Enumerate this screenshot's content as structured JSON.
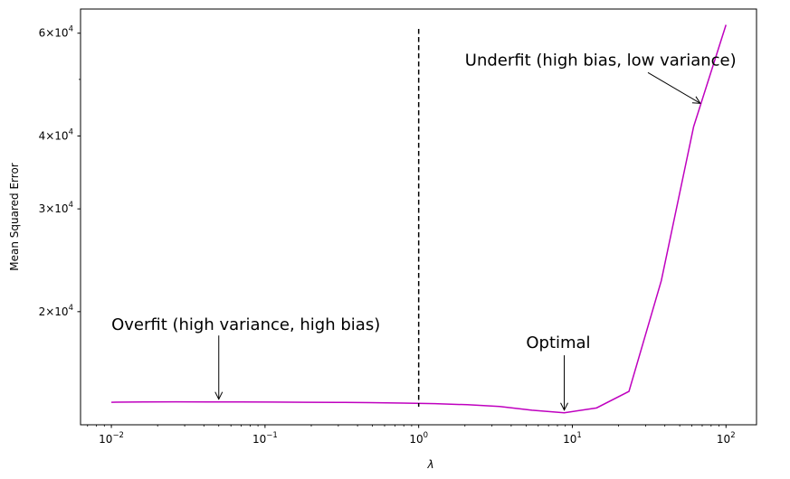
{
  "chart_data": {
    "type": "line",
    "xlabel": "λ",
    "ylabel": "Mean Squared Error",
    "xscale": "log",
    "yscale": "log",
    "xlim": [
      0.0063,
      158
    ],
    "ylim": [
      12800,
      66000
    ],
    "grid": false,
    "x_ticks": [
      {
        "value": 0.01,
        "base": "10",
        "exp": "−2"
      },
      {
        "value": 0.1,
        "base": "10",
        "exp": "−1"
      },
      {
        "value": 1,
        "base": "10",
        "exp": "0"
      },
      {
        "value": 10,
        "base": "10",
        "exp": "1"
      },
      {
        "value": 100,
        "base": "10",
        "exp": "2"
      }
    ],
    "y_ticks": [
      {
        "value": 20000,
        "mant": "2",
        "base": "10",
        "exp": "4"
      },
      {
        "value": 30000,
        "mant": "3",
        "base": "10",
        "exp": "4"
      },
      {
        "value": 40000,
        "mant": "4",
        "base": "10",
        "exp": "4"
      },
      {
        "value": 60000,
        "mant": "6",
        "base": "10",
        "exp": "4"
      }
    ],
    "y_minor_ticks": [
      50000
    ],
    "series": [
      {
        "color": "#bf00bf",
        "x": [
          0.01,
          0.01624,
          0.02637,
          0.04281,
          0.06952,
          0.1129,
          0.1833,
          0.2976,
          0.4833,
          0.7848,
          1.274,
          2.069,
          3.36,
          5.456,
          8.859,
          14.38,
          23.36,
          37.93,
          61.58,
          100
        ],
        "y": [
          13990,
          14005,
          14010,
          14008,
          14004,
          13998,
          13990,
          13982,
          13968,
          13945,
          13910,
          13855,
          13760,
          13560,
          13420,
          13680,
          14600,
          22600,
          41500,
          62000
        ]
      }
    ],
    "vline": {
      "x": 1,
      "style": "dashed",
      "color": "#000000"
    },
    "annotations": [
      {
        "text": "Overfit (high variance, high bias)",
        "text_x": 0.01,
        "text_y": 19000,
        "arrow_x": 0.05,
        "arrow_y": 14010
      },
      {
        "text": "Optimal",
        "text_x": 5,
        "text_y": 17700,
        "arrow_x": 8.859,
        "arrow_y": 13420
      },
      {
        "text": "Underfit (high bias, low variance)",
        "text_x": 2,
        "text_y": 54000,
        "arrow_x": 68,
        "arrow_y": 45500
      }
    ]
  }
}
